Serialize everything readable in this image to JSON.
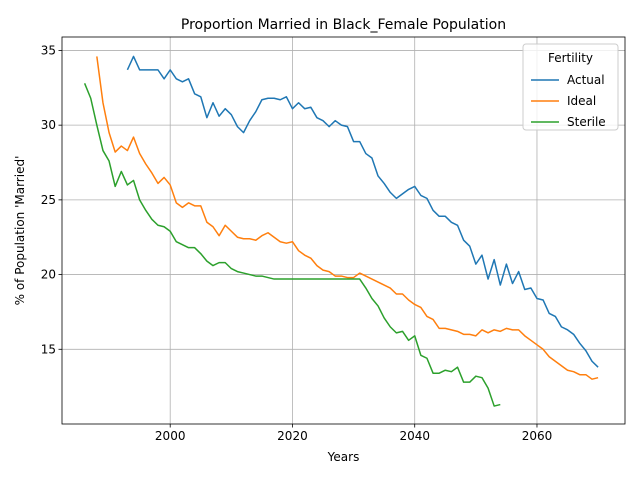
{
  "chart_data": {
    "type": "line",
    "title": "Proportion Married in Black_Female Population",
    "xlabel": "Years",
    "ylabel": "% of Population 'Married'",
    "xlim": [
      1982.3,
      2074.4
    ],
    "ylim": [
      10.0,
      35.9
    ],
    "xticks": [
      2000,
      2020,
      2040,
      2060
    ],
    "yticks": [
      15,
      20,
      25,
      30,
      35
    ],
    "grid": true,
    "legend": {
      "title": "Fertility",
      "position": "top-right"
    },
    "series": [
      {
        "name": "Actual",
        "color": "#1f77b4",
        "points": [
          [
            1993,
            33.7
          ],
          [
            1994,
            34.6
          ],
          [
            1995,
            33.7
          ],
          [
            1996,
            33.7
          ],
          [
            1997,
            33.7
          ],
          [
            1998,
            33.7
          ],
          [
            1999,
            33.1
          ],
          [
            2000,
            33.7
          ],
          [
            2001,
            33.1
          ],
          [
            2002,
            32.9
          ],
          [
            2003,
            33.1
          ],
          [
            2004,
            32.1
          ],
          [
            2005,
            31.9
          ],
          [
            2006,
            30.5
          ],
          [
            2007,
            31.5
          ],
          [
            2008,
            30.6
          ],
          [
            2009,
            31.1
          ],
          [
            2010,
            30.7
          ],
          [
            2011,
            29.9
          ],
          [
            2012,
            29.5
          ],
          [
            2013,
            30.3
          ],
          [
            2014,
            30.9
          ],
          [
            2015,
            31.7
          ],
          [
            2016,
            31.8
          ],
          [
            2017,
            31.8
          ],
          [
            2018,
            31.7
          ],
          [
            2019,
            31.9
          ],
          [
            2020,
            31.1
          ],
          [
            2021,
            31.5
          ],
          [
            2022,
            31.1
          ],
          [
            2023,
            31.2
          ],
          [
            2024,
            30.5
          ],
          [
            2025,
            30.3
          ],
          [
            2026,
            29.9
          ],
          [
            2027,
            30.3
          ],
          [
            2028,
            30.0
          ],
          [
            2029,
            29.9
          ],
          [
            2030,
            28.9
          ],
          [
            2031,
            28.9
          ],
          [
            2032,
            28.1
          ],
          [
            2033,
            27.8
          ],
          [
            2034,
            26.6
          ],
          [
            2035,
            26.1
          ],
          [
            2036,
            25.5
          ],
          [
            2037,
            25.1
          ],
          [
            2038,
            25.4
          ],
          [
            2039,
            25.7
          ],
          [
            2040,
            25.9
          ],
          [
            2041,
            25.3
          ],
          [
            2042,
            25.1
          ],
          [
            2043,
            24.3
          ],
          [
            2044,
            23.9
          ],
          [
            2045,
            23.9
          ],
          [
            2046,
            23.5
          ],
          [
            2047,
            23.3
          ],
          [
            2048,
            22.3
          ],
          [
            2049,
            21.9
          ],
          [
            2050,
            20.7
          ],
          [
            2051,
            21.3
          ],
          [
            2052,
            19.7
          ],
          [
            2053,
            21.0
          ],
          [
            2054,
            19.3
          ],
          [
            2055,
            20.7
          ],
          [
            2056,
            19.4
          ],
          [
            2057,
            20.2
          ],
          [
            2058,
            19.0
          ],
          [
            2059,
            19.1
          ],
          [
            2060,
            18.4
          ],
          [
            2061,
            18.3
          ],
          [
            2062,
            17.4
          ],
          [
            2063,
            17.2
          ],
          [
            2064,
            16.5
          ],
          [
            2065,
            16.3
          ],
          [
            2066,
            16.0
          ],
          [
            2067,
            15.4
          ],
          [
            2068,
            14.9
          ],
          [
            2069,
            14.2
          ],
          [
            2070,
            13.8
          ]
        ]
      },
      {
        "name": "Ideal",
        "color": "#ff7f0e",
        "points": [
          [
            1988,
            34.6
          ],
          [
            1989,
            31.5
          ],
          [
            1990,
            29.5
          ],
          [
            1991,
            28.2
          ],
          [
            1992,
            28.6
          ],
          [
            1993,
            28.3
          ],
          [
            1994,
            29.2
          ],
          [
            1995,
            28.1
          ],
          [
            1996,
            27.4
          ],
          [
            1997,
            26.8
          ],
          [
            1998,
            26.1
          ],
          [
            1999,
            26.5
          ],
          [
            2000,
            26.0
          ],
          [
            2001,
            24.8
          ],
          [
            2002,
            24.5
          ],
          [
            2003,
            24.8
          ],
          [
            2004,
            24.6
          ],
          [
            2005,
            24.6
          ],
          [
            2006,
            23.5
          ],
          [
            2007,
            23.2
          ],
          [
            2008,
            22.6
          ],
          [
            2009,
            23.3
          ],
          [
            2010,
            22.9
          ],
          [
            2011,
            22.5
          ],
          [
            2012,
            22.4
          ],
          [
            2013,
            22.4
          ],
          [
            2014,
            22.3
          ],
          [
            2015,
            22.6
          ],
          [
            2016,
            22.8
          ],
          [
            2017,
            22.5
          ],
          [
            2018,
            22.2
          ],
          [
            2019,
            22.1
          ],
          [
            2020,
            22.2
          ],
          [
            2021,
            21.6
          ],
          [
            2022,
            21.3
          ],
          [
            2023,
            21.1
          ],
          [
            2024,
            20.6
          ],
          [
            2025,
            20.3
          ],
          [
            2026,
            20.2
          ],
          [
            2027,
            19.9
          ],
          [
            2028,
            19.9
          ],
          [
            2029,
            19.8
          ],
          [
            2030,
            19.8
          ],
          [
            2031,
            20.1
          ],
          [
            2032,
            19.9
          ],
          [
            2033,
            19.7
          ],
          [
            2034,
            19.5
          ],
          [
            2035,
            19.3
          ],
          [
            2036,
            19.1
          ],
          [
            2037,
            18.7
          ],
          [
            2038,
            18.7
          ],
          [
            2039,
            18.3
          ],
          [
            2040,
            18.0
          ],
          [
            2041,
            17.8
          ],
          [
            2042,
            17.2
          ],
          [
            2043,
            17.0
          ],
          [
            2044,
            16.4
          ],
          [
            2045,
            16.4
          ],
          [
            2046,
            16.3
          ],
          [
            2047,
            16.2
          ],
          [
            2048,
            16.0
          ],
          [
            2049,
            16.0
          ],
          [
            2050,
            15.9
          ],
          [
            2051,
            16.3
          ],
          [
            2052,
            16.1
          ],
          [
            2053,
            16.3
          ],
          [
            2054,
            16.2
          ],
          [
            2055,
            16.4
          ],
          [
            2056,
            16.3
          ],
          [
            2057,
            16.3
          ],
          [
            2058,
            15.9
          ],
          [
            2059,
            15.6
          ],
          [
            2060,
            15.3
          ],
          [
            2061,
            15.0
          ],
          [
            2062,
            14.5
          ],
          [
            2063,
            14.2
          ],
          [
            2064,
            13.9
          ],
          [
            2065,
            13.6
          ],
          [
            2066,
            13.5
          ],
          [
            2067,
            13.3
          ],
          [
            2068,
            13.3
          ],
          [
            2069,
            13.0
          ],
          [
            2070,
            13.1
          ]
        ]
      },
      {
        "name": "Sterile",
        "color": "#2ca02c",
        "points": [
          [
            1986,
            32.8
          ],
          [
            1987,
            31.8
          ],
          [
            1988,
            30.0
          ],
          [
            1989,
            28.3
          ],
          [
            1990,
            27.6
          ],
          [
            1991,
            25.9
          ],
          [
            1992,
            26.9
          ],
          [
            1993,
            26.0
          ],
          [
            1994,
            26.3
          ],
          [
            1995,
            25.0
          ],
          [
            1996,
            24.3
          ],
          [
            1997,
            23.7
          ],
          [
            1998,
            23.3
          ],
          [
            1999,
            23.2
          ],
          [
            2000,
            22.9
          ],
          [
            2001,
            22.2
          ],
          [
            2002,
            22.0
          ],
          [
            2003,
            21.8
          ],
          [
            2004,
            21.8
          ],
          [
            2005,
            21.4
          ],
          [
            2006,
            20.9
          ],
          [
            2007,
            20.6
          ],
          [
            2008,
            20.8
          ],
          [
            2009,
            20.8
          ],
          [
            2010,
            20.4
          ],
          [
            2011,
            20.2
          ],
          [
            2012,
            20.1
          ],
          [
            2013,
            20.0
          ],
          [
            2014,
            19.9
          ],
          [
            2015,
            19.9
          ],
          [
            2016,
            19.8
          ],
          [
            2017,
            19.7
          ],
          [
            2018,
            19.7
          ],
          [
            2019,
            19.7
          ],
          [
            2020,
            19.7
          ],
          [
            2021,
            19.7
          ],
          [
            2022,
            19.7
          ],
          [
            2023,
            19.7
          ],
          [
            2024,
            19.7
          ],
          [
            2025,
            19.7
          ],
          [
            2026,
            19.7
          ],
          [
            2027,
            19.7
          ],
          [
            2028,
            19.7
          ],
          [
            2029,
            19.7
          ],
          [
            2030,
            19.7
          ],
          [
            2031,
            19.7
          ],
          [
            2032,
            19.1
          ],
          [
            2033,
            18.4
          ],
          [
            2034,
            17.9
          ],
          [
            2035,
            17.1
          ],
          [
            2036,
            16.5
          ],
          [
            2037,
            16.1
          ],
          [
            2038,
            16.2
          ],
          [
            2039,
            15.6
          ],
          [
            2040,
            15.9
          ],
          [
            2041,
            14.6
          ],
          [
            2042,
            14.4
          ],
          [
            2043,
            13.4
          ],
          [
            2044,
            13.4
          ],
          [
            2045,
            13.6
          ],
          [
            2046,
            13.5
          ],
          [
            2047,
            13.8
          ],
          [
            2048,
            12.8
          ],
          [
            2049,
            12.8
          ],
          [
            2050,
            13.2
          ],
          [
            2051,
            13.1
          ],
          [
            2052,
            12.4
          ],
          [
            2053,
            11.2
          ],
          [
            2054,
            11.3
          ]
        ]
      }
    ]
  }
}
